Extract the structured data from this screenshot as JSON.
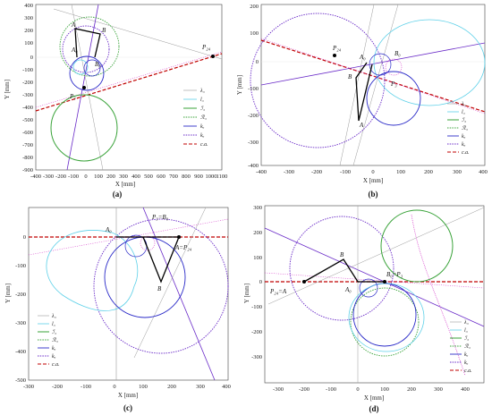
{
  "panels": [
    {
      "id": "a",
      "label": "(a)",
      "xlabel": "X [mm]",
      "ylabel": "Y [mm]",
      "xticks": [
        "-400",
        "-300",
        "-200",
        "-100",
        "0",
        "100",
        "200",
        "300",
        "400",
        "500",
        "600",
        "700",
        "800",
        "900",
        "1000",
        "1100"
      ],
      "yticks": [
        "400",
        "300",
        "200",
        "100",
        "0",
        "-100",
        "-200",
        "-300",
        "-400",
        "-500",
        "-600",
        "-700",
        "-800",
        "-900"
      ],
      "points": [
        "A",
        "B",
        "A₀",
        "B₀",
        "P₃",
        "P₂₄"
      ],
      "legend": [
        "λ₃",
        "l₃",
        "ℐ₃",
        "ℛ₃",
        "kₐ",
        "kₐ",
        "c.a."
      ]
    },
    {
      "id": "b",
      "label": "(b)",
      "xlabel": "X [mm]",
      "ylabel": "Y [mm]",
      "xticks": [
        "-400",
        "-300",
        "-200",
        "-100",
        "0",
        "100",
        "200",
        "300",
        "400"
      ],
      "yticks": [
        "200",
        "100",
        "0",
        "-100",
        "-200",
        "-300",
        "-400"
      ],
      "points": [
        "A",
        "B",
        "A₀",
        "B₀",
        "P₃",
        "P₂₄"
      ],
      "legend": [
        "λ₃",
        "l₃",
        "ℐ₃",
        "ℛ₃",
        "kₐ",
        "kₐ",
        "c.a."
      ]
    },
    {
      "id": "c",
      "label": "(c)",
      "xlabel": "X [mm]",
      "ylabel": "Y [mm]",
      "xticks": [
        "-300",
        "-200",
        "-100",
        "0",
        "100",
        "200",
        "300",
        "400"
      ],
      "yticks": [
        "0",
        "-100",
        "-200",
        "-300",
        "-400",
        "-500"
      ],
      "points": [
        "A₀",
        "P₃=B₀",
        "A=P₂₄",
        "B"
      ],
      "legend": [
        "λ₃",
        "l₃",
        "ℐ₃",
        "ℛ₃",
        "kₐ",
        "kₐ",
        "c.a."
      ]
    },
    {
      "id": "d",
      "label": "(d)",
      "xlabel": "X [mm]",
      "ylabel": "Y [mm]",
      "xticks": [
        "-300",
        "-200",
        "-100",
        "0",
        "100",
        "200",
        "300",
        "400"
      ],
      "yticks": [
        "300",
        "200",
        "100",
        "0",
        "-100",
        "-200",
        "-300"
      ],
      "points": [
        "B",
        "A₀",
        "B₀=P₃",
        "P₂₄=A"
      ],
      "legend": [
        "λ₃",
        "l₃",
        "ℐ₃",
        "ℛ₃",
        "kₐ",
        "kₐ",
        "c.a."
      ]
    }
  ],
  "colors": {
    "lambda3": "#9a9a9a",
    "l3": "#5dd0e8",
    "I3": "#3aa33a",
    "R3": "#3aa33a",
    "ka_solid": "#2b2bc8",
    "ka_dotted": "#6a2bc8",
    "ka_pink": "#d43ac8",
    "ca": "#c00000",
    "linkage": "#000000"
  }
}
